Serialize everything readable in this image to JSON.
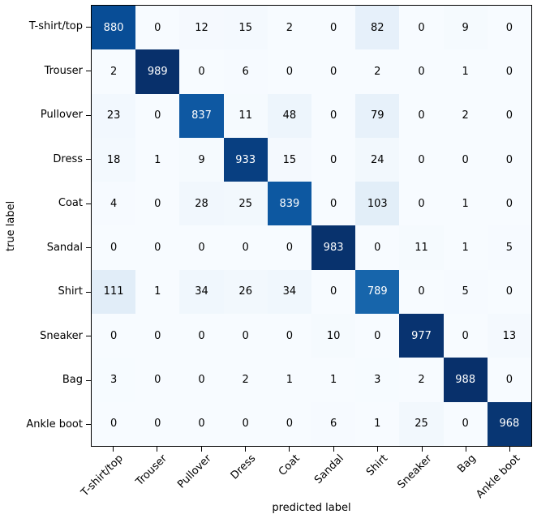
{
  "figure": {
    "background": "#ffffff",
    "axes_border_color": "#000000"
  },
  "chart_data": {
    "type": "heatmap",
    "title": "",
    "xlabel": "predicted label",
    "ylabel": "true label",
    "x_tick_labels": [
      "T-shirt/top",
      "Trouser",
      "Pullover",
      "Dress",
      "Coat",
      "Sandal",
      "Shirt",
      "Sneaker",
      "Bag",
      "Ankle boot"
    ],
    "y_tick_labels": [
      "T-shirt/top",
      "Trouser",
      "Pullover",
      "Dress",
      "Coat",
      "Sandal",
      "Shirt",
      "Sneaker",
      "Bag",
      "Ankle boot"
    ],
    "matrix": [
      [
        880,
        0,
        12,
        15,
        2,
        0,
        82,
        0,
        9,
        0
      ],
      [
        2,
        989,
        0,
        6,
        0,
        0,
        2,
        0,
        1,
        0
      ],
      [
        23,
        0,
        837,
        11,
        48,
        0,
        79,
        0,
        2,
        0
      ],
      [
        18,
        1,
        9,
        933,
        15,
        0,
        24,
        0,
        0,
        0
      ],
      [
        4,
        0,
        28,
        25,
        839,
        0,
        103,
        0,
        1,
        0
      ],
      [
        0,
        0,
        0,
        0,
        0,
        983,
        0,
        11,
        1,
        5
      ],
      [
        111,
        1,
        34,
        26,
        34,
        0,
        789,
        0,
        5,
        0
      ],
      [
        0,
        0,
        0,
        0,
        0,
        10,
        0,
        977,
        0,
        13
      ],
      [
        3,
        0,
        0,
        2,
        1,
        1,
        3,
        2,
        988,
        0
      ],
      [
        0,
        0,
        0,
        0,
        0,
        6,
        1,
        25,
        0,
        968
      ]
    ],
    "vmin": 0,
    "vmax": 989,
    "colormap": "Blues",
    "colormap_stops": [
      {
        "pos": 0.0,
        "color": "#f7fbff"
      },
      {
        "pos": 0.125,
        "color": "#deebf7"
      },
      {
        "pos": 0.25,
        "color": "#c6dbef"
      },
      {
        "pos": 0.375,
        "color": "#9ecae1"
      },
      {
        "pos": 0.5,
        "color": "#6baed6"
      },
      {
        "pos": 0.625,
        "color": "#4292c6"
      },
      {
        "pos": 0.75,
        "color": "#2171b5"
      },
      {
        "pos": 0.875,
        "color": "#08519c"
      },
      {
        "pos": 1.0,
        "color": "#08306b"
      }
    ],
    "cell_text_color_on_dark": "#ffffff",
    "cell_text_color_on_light": "#000000",
    "x_tick_rotation_deg": 45,
    "grid": false,
    "legend_position": "none"
  }
}
